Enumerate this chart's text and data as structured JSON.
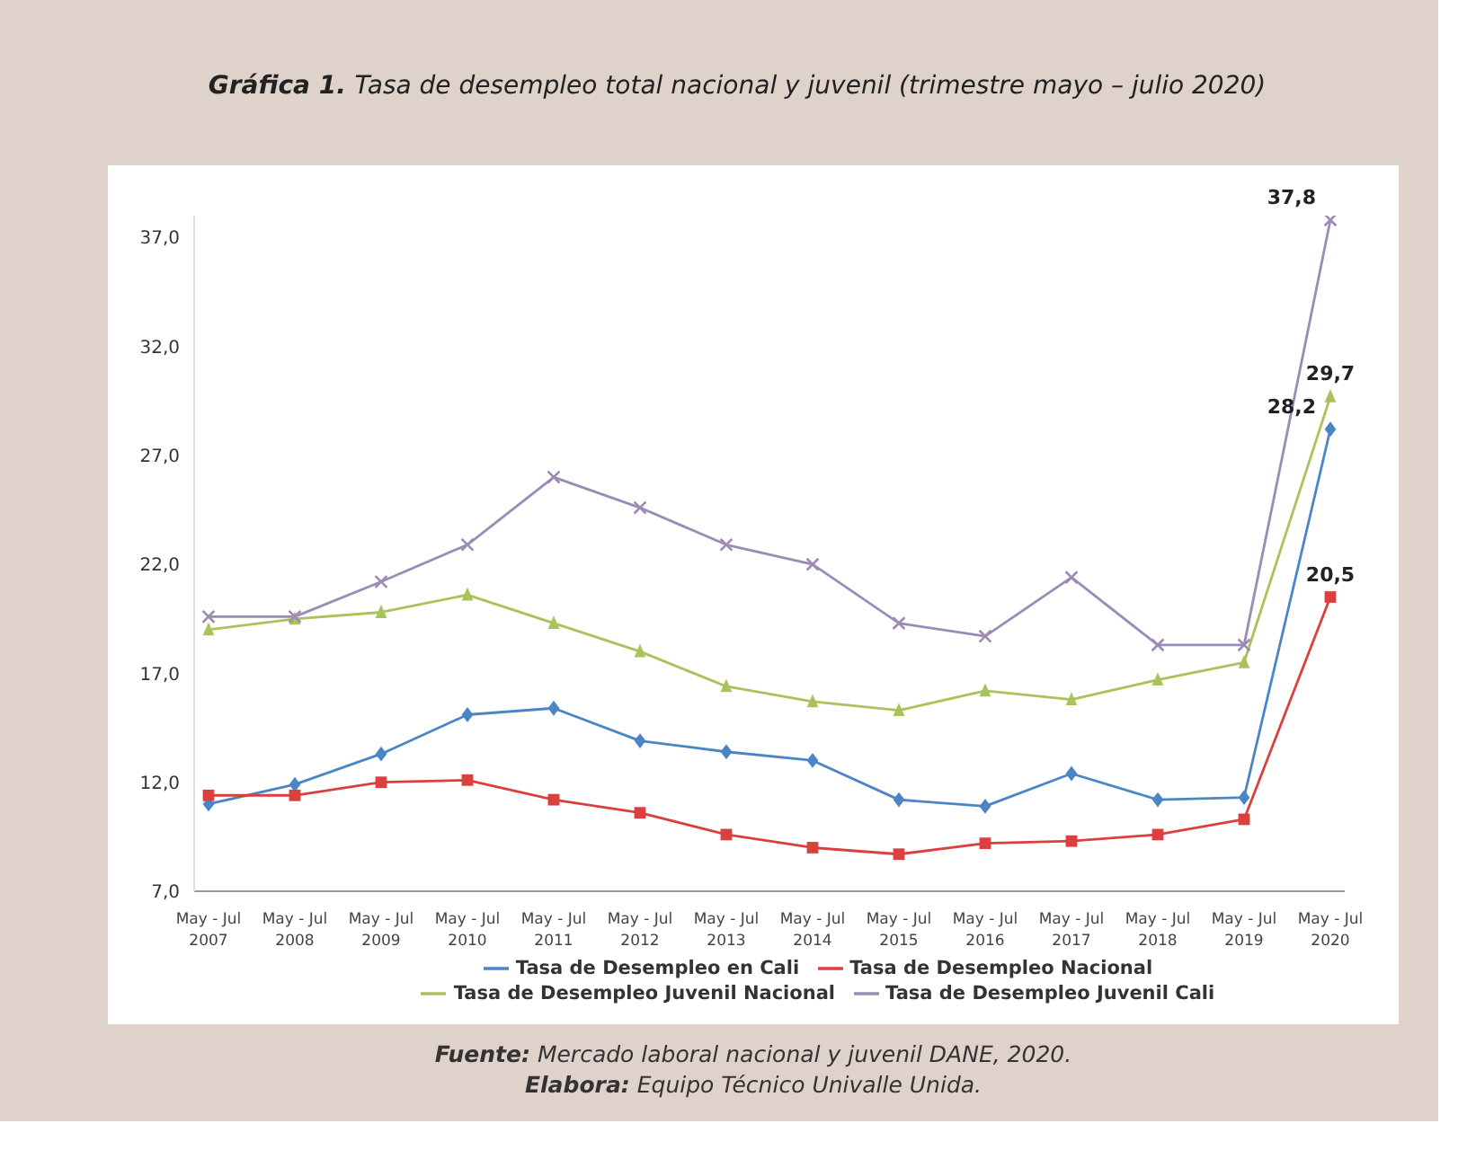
{
  "chart_data": {
    "type": "line",
    "title": "Gráfica 1. Tasa de desempleo total nacional y juvenil  (trimestre mayo – julio 2020)",
    "categories": [
      "May - Jul 2007",
      "May - Jul 2008",
      "May - Jul 2009",
      "May - Jul 2010",
      "May - Jul 2011",
      "May - Jul 2012",
      "May - Jul 2013",
      "May - Jul 2014",
      "May - Jul 2015",
      "May - Jul 2016",
      "May - Jul 2017",
      "May - Jul 2018",
      "May - Jul 2019",
      "May - Jul 2020"
    ],
    "series": [
      {
        "name": "Tasa de Desempleo en Cali",
        "color": "#4a86c5",
        "marker": "diamond",
        "values": [
          11.0,
          11.9,
          13.3,
          15.1,
          15.4,
          13.9,
          13.4,
          13.0,
          11.2,
          10.9,
          12.4,
          11.2,
          11.3,
          28.2
        ],
        "value_labels": [
          null,
          null,
          null,
          null,
          null,
          null,
          null,
          null,
          null,
          null,
          null,
          null,
          null,
          "28,2"
        ]
      },
      {
        "name": "Tasa de Desempleo Nacional",
        "color": "#d9403e",
        "marker": "square",
        "values": [
          11.4,
          11.4,
          12.0,
          12.1,
          11.2,
          10.6,
          9.6,
          9.0,
          8.7,
          9.2,
          9.3,
          9.6,
          10.3,
          20.5
        ],
        "value_labels": [
          null,
          null,
          null,
          null,
          null,
          null,
          null,
          null,
          null,
          null,
          null,
          null,
          null,
          "20,5"
        ]
      },
      {
        "name": "Tasa de Desempleo Juvenil Nacional",
        "color": "#a9c25a",
        "marker": "triangle",
        "values": [
          19.0,
          19.5,
          19.8,
          20.6,
          19.3,
          18.0,
          16.4,
          15.7,
          15.3,
          16.2,
          15.8,
          16.7,
          17.5,
          29.7
        ],
        "value_labels": [
          null,
          null,
          null,
          null,
          null,
          null,
          null,
          null,
          null,
          null,
          null,
          null,
          null,
          "29,7"
        ]
      },
      {
        "name": "Tasa de Desempleo Juvenil Cali",
        "color": "#9b8bb5",
        "marker": "cross",
        "values": [
          19.6,
          19.6,
          21.2,
          22.9,
          26.0,
          24.6,
          22.9,
          22.0,
          19.3,
          18.7,
          21.4,
          18.3,
          18.3,
          37.8
        ],
        "value_labels": [
          null,
          null,
          null,
          null,
          null,
          null,
          null,
          null,
          null,
          null,
          null,
          null,
          null,
          "37,8"
        ]
      }
    ],
    "ylim": [
      7,
      38
    ],
    "yticks": [
      {
        "value": 7,
        "label": "7,0"
      },
      {
        "value": 12,
        "label": "12,0"
      },
      {
        "value": 17,
        "label": "17,0"
      },
      {
        "value": 22,
        "label": "22,0"
      },
      {
        "value": 27,
        "label": "27,0"
      },
      {
        "value": 32,
        "label": "32,0"
      },
      {
        "value": 37,
        "label": "37,0"
      }
    ],
    "grid": false,
    "legend": "bottom",
    "line_style": "solid",
    "annotations": [
      "Fuente: Mercado laboral nacional y juvenil DANE, 2020.",
      "Elabora: Equipo Técnico Univalle Unida."
    ]
  }
}
